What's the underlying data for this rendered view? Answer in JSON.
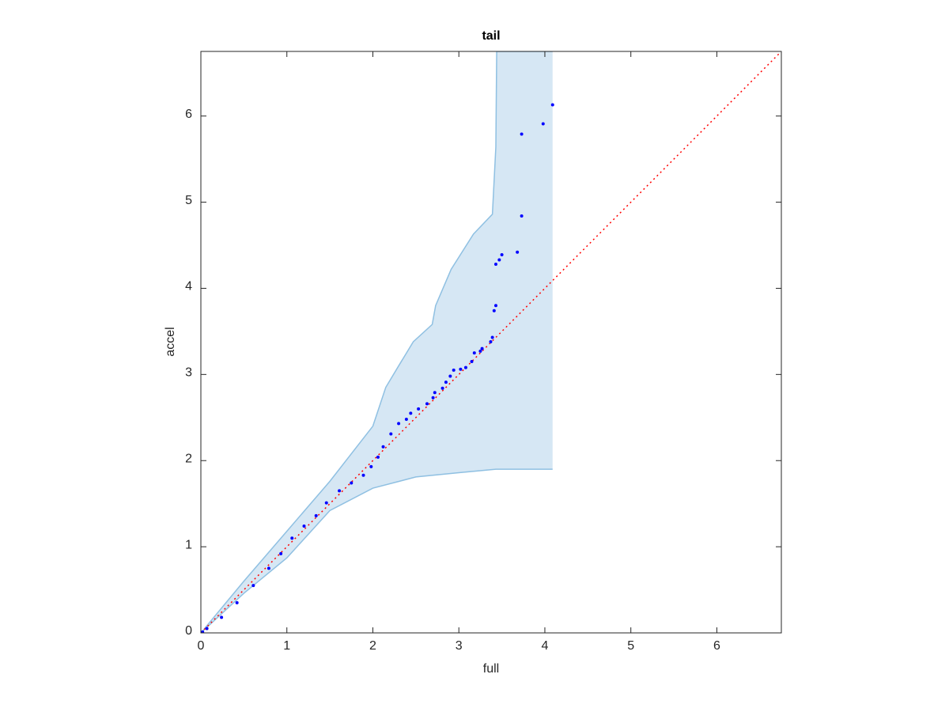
{
  "chart_data": {
    "type": "scatter",
    "title": "tail",
    "x_label": "full",
    "y_label": "accel",
    "xlim": [
      0,
      6.75
    ],
    "ylim": [
      0,
      6.75
    ],
    "xticks": [
      0,
      1,
      2,
      3,
      4,
      5,
      6
    ],
    "yticks": [
      0,
      1,
      2,
      3,
      4,
      5,
      6
    ],
    "grid": false,
    "series": [
      {
        "type": "band",
        "color": "#d6e7f4",
        "edge_color": "#8fc0e2",
        "upper": {
          "x": [
            0,
            0.5,
            1,
            1.5,
            2,
            2.15,
            2.3,
            2.47,
            2.69,
            2.73,
            2.91,
            3.17,
            3.39,
            3.43,
            3.44,
            4.09
          ],
          "values": [
            0,
            0.6,
            1.18,
            1.76,
            2.4,
            2.85,
            3.1,
            3.38,
            3.58,
            3.8,
            4.22,
            4.63,
            4.86,
            5.64,
            6.75,
            6.75
          ]
        },
        "lower": {
          "x": [
            0,
            0.5,
            1,
            1.5,
            2,
            2.5,
            3,
            3.43,
            4.09
          ],
          "values": [
            0,
            0.46,
            0.87,
            1.42,
            1.68,
            1.81,
            1.86,
            1.9,
            1.9
          ]
        }
      },
      {
        "type": "line",
        "color": "#ff0000",
        "style": "dotted",
        "x": [
          0,
          6.75
        ],
        "values": [
          0,
          6.75
        ]
      },
      {
        "type": "scatter",
        "color": "#0000ff",
        "x": [
          0.02,
          0.07,
          0.24,
          0.42,
          0.61,
          0.79,
          0.93,
          1.06,
          1.2,
          1.34,
          1.46,
          1.61,
          1.75,
          1.89,
          1.98,
          2.06,
          2.12,
          2.21,
          2.3,
          2.39,
          2.44,
          2.53,
          2.63,
          2.7,
          2.72,
          2.81,
          2.85,
          2.9,
          2.94,
          3.02,
          3.08,
          3.15,
          3.18,
          3.25,
          3.27,
          3.37,
          3.39,
          3.41,
          3.43,
          3.43,
          3.47,
          3.5,
          3.68,
          3.73,
          3.73,
          3.98,
          4.09
        ],
        "values": [
          0.01,
          0.05,
          0.18,
          0.35,
          0.55,
          0.75,
          0.92,
          1.1,
          1.24,
          1.36,
          1.51,
          1.65,
          1.74,
          1.83,
          1.93,
          2.04,
          2.16,
          2.31,
          2.43,
          2.48,
          2.55,
          2.6,
          2.66,
          2.73,
          2.79,
          2.84,
          2.91,
          2.98,
          3.05,
          3.06,
          3.08,
          3.15,
          3.25,
          3.27,
          3.3,
          3.38,
          3.43,
          3.74,
          3.8,
          4.28,
          4.33,
          4.39,
          4.42,
          4.84,
          5.79,
          5.91,
          6.13
        ]
      }
    ]
  }
}
